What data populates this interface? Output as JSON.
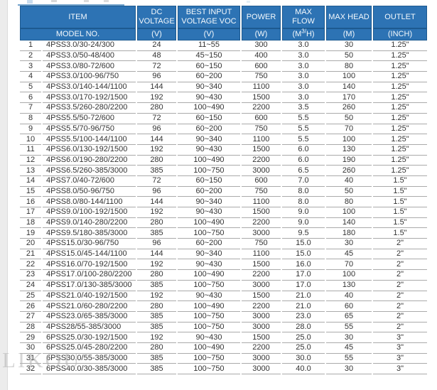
{
  "page": {
    "watermark": "LIKOU",
    "colors": {
      "header_bg": "#2d73b4",
      "header_border": "#1d5a90",
      "header_text": "#f4f9fd",
      "row_line": "#aaaaaa",
      "body_text": "#333333",
      "left_strip": "#ececec"
    }
  },
  "table": {
    "header": {
      "item": "ITEM",
      "dc_voltage": "DC VOLTAGE",
      "best_input": "BEST INPUT VOLTAGE VOC",
      "power": "POWER",
      "max_flow": "MAX FLOW",
      "max_head": "MAX HEAD",
      "outlet": "OUTLET",
      "model_no": "MODEL NO.",
      "unit_v1": "(V)",
      "unit_v2": "(V)",
      "unit_w": "(W)",
      "unit_flow_pre": "(M",
      "unit_flow_sup": "3/",
      "unit_flow_post": "H)",
      "unit_m": "(M)",
      "unit_inch": "(INCH)"
    },
    "rows": [
      [
        "1",
        "4PSS3.0/30-24/300",
        "24",
        "11~55",
        "300",
        "3.0",
        "30",
        "1.25\""
      ],
      [
        "2",
        "4PSS3.0/50-48/400",
        "48",
        "45~150",
        "400",
        "3.0",
        "50",
        "1.25\""
      ],
      [
        "3",
        "4PSS3.0/80-72/600",
        "72",
        "60~150",
        "600",
        "3.0",
        "80",
        "1.25\""
      ],
      [
        "4",
        "4PSS3.0/100-96/750",
        "96",
        "60~200",
        "750",
        "3.0",
        "100",
        "1.25\""
      ],
      [
        "5",
        "4PSS3.0/140-144/1100",
        "144",
        "90~340",
        "1100",
        "3.0",
        "140",
        "1.25\""
      ],
      [
        "6",
        "4PSS3.0/170-192/1500",
        "192",
        "90~430",
        "1500",
        "3.0",
        "170",
        "1.25\""
      ],
      [
        "7",
        "4PSS3.5/260-280/2200",
        "280",
        "100~490",
        "2200",
        "3.5",
        "260",
        "1.25\""
      ],
      [
        "8",
        "4PSS5.5/50-72/600",
        "72",
        "60~150",
        "600",
        "5.5",
        "50",
        "1.25\""
      ],
      [
        "9",
        "4PSS5.5/70-96/750",
        "96",
        "60~200",
        "750",
        "5.5",
        "70",
        "1.25\""
      ],
      [
        "10",
        "4PSS5.5/100-144/1100",
        "144",
        "90~340",
        "1100",
        "5.5",
        "100",
        "1.25\""
      ],
      [
        "11",
        "4PSS6.0/130-192/1500",
        "192",
        "90~430",
        "1500",
        "6.0",
        "130",
        "1.25\""
      ],
      [
        "12",
        "4PSS6.0/190-280/2200",
        "280",
        "100~490",
        "2200",
        "6.0",
        "190",
        "1.25\""
      ],
      [
        "13",
        "4PSS6.5/260-385/3000",
        "385",
        "100~750",
        "3000",
        "6.5",
        "260",
        "1.25\""
      ],
      [
        "14",
        "4PSS7.0/40-72/600",
        "72",
        "60~150",
        "600",
        "7.0",
        "40",
        "1.5\""
      ],
      [
        "15",
        "4PSS8.0/50-96/750",
        "96",
        "60~200",
        "750",
        "8.0",
        "50",
        "1.5\""
      ],
      [
        "16",
        "4PSS8.0/80-144/1100",
        "144",
        "90~340",
        "1100",
        "8.0",
        "80",
        "1.5\""
      ],
      [
        "17",
        "4PSS9.0/100-192/1500",
        "192",
        "90~430",
        "1500",
        "9.0",
        "100",
        "1.5\""
      ],
      [
        "18",
        "4PSS9.0/140-280/2200",
        "280",
        "100~490",
        "2200",
        "9.0",
        "140",
        "1.5\""
      ],
      [
        "19",
        "4PSS9.5/180-385/3000",
        "385",
        "100~750",
        "3000",
        "9.5",
        "180",
        "1.5\""
      ],
      [
        "20",
        "4PSS15.0/30-96/750",
        "96",
        "60~200",
        "750",
        "15.0",
        "30",
        "2\""
      ],
      [
        "21",
        "4PSS15.0/45-144/1100",
        "144",
        "90~340",
        "1100",
        "15.0",
        "45",
        "2\""
      ],
      [
        "22",
        "4PSS16.0/70-192/1500",
        "192",
        "90~430",
        "1500",
        "16.0",
        "70",
        "2\""
      ],
      [
        "23",
        "4PSS17.0/100-280/2200",
        "280",
        "100~490",
        "2200",
        "17.0",
        "100",
        "2\""
      ],
      [
        "24",
        "4PSS17.0/130-385/3000",
        "385",
        "100~750",
        "3000",
        "17.0",
        "130",
        "2\""
      ],
      [
        "25",
        "4PSS21.0/40-192/1500",
        "192",
        "90~430",
        "1500",
        "21.0",
        "40",
        "2\""
      ],
      [
        "26",
        "4PSS21.0/60-280/2200",
        "280",
        "100~490",
        "2200",
        "21.0",
        "60",
        "2\""
      ],
      [
        "27",
        "4PSS23.0/65-385/3000",
        "385",
        "100~750",
        "3000",
        "23.0",
        "65",
        "2\""
      ],
      [
        "28",
        "4PSS28/55-385/3000",
        "385",
        "100~750",
        "3000",
        "28.0",
        "55",
        "2\""
      ],
      [
        "29",
        "6PSS25.0/30-192/1500",
        "192",
        "90~430",
        "1500",
        "25.0",
        "30",
        "3\""
      ],
      [
        "30",
        "6PSS25.0/45-280/2200",
        "280",
        "100~490",
        "2200",
        "25.0",
        "45",
        "3\""
      ],
      [
        "31",
        "6PSS30.0/55-385/3000",
        "385",
        "100~750",
        "3000",
        "30.0",
        "55",
        "3\""
      ],
      [
        "32",
        "6PSS40.0/30-385/3000",
        "385",
        "100~750",
        "3000",
        "40.0",
        "30",
        "3\""
      ]
    ]
  }
}
